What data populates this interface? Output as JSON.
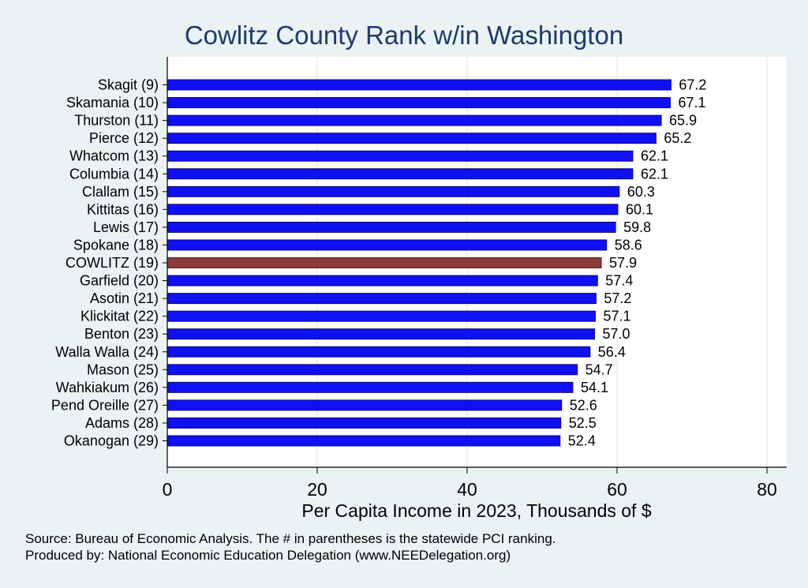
{
  "chart_data": {
    "type": "bar",
    "orientation": "horizontal",
    "title": "Cowlitz County Rank w/in Washington",
    "xlabel": "Per Capita Income in 2023, Thousands of $",
    "xlim": [
      0,
      80
    ],
    "xticks": [
      0,
      20,
      40,
      60,
      80
    ],
    "grid": true,
    "highlight_color": "#8e3b3d",
    "bar_color": "#1010f5",
    "categories": [
      "Skagit  (9)",
      "Skamania (10)",
      "Thurston (11)",
      "Pierce (12)",
      "Whatcom (13)",
      "Columbia (14)",
      "Clallam (15)",
      "Kittitas (16)",
      "Lewis (17)",
      "Spokane (18)",
      "COWLITZ (19)",
      "Garfield (20)",
      "Asotin (21)",
      "Klickitat (22)",
      "Benton (23)",
      "Walla Walla (24)",
      "Mason (25)",
      "Wahkiakum (26)",
      "Pend Oreille (27)",
      "Adams (28)",
      "Okanogan (29)"
    ],
    "values": [
      67.2,
      67.1,
      65.9,
      65.2,
      62.1,
      62.1,
      60.3,
      60.1,
      59.8,
      58.6,
      57.9,
      57.4,
      57.2,
      57.1,
      57.0,
      56.4,
      54.7,
      54.1,
      52.6,
      52.5,
      52.4
    ],
    "value_labels": [
      "67.2",
      "67.1",
      "65.9",
      "65.2",
      "62.1",
      "62.1",
      "60.3",
      "60.1",
      "59.8",
      "58.6",
      "57.9",
      "57.4",
      "57.2",
      "57.1",
      "57.0",
      "56.4",
      "54.7",
      "54.1",
      "52.6",
      "52.5",
      "52.4"
    ],
    "highlight_index": 10
  },
  "notes": {
    "source": "Source: Bureau of Economic Analysis. The # in parentheses is the statewide PCI ranking.",
    "produced_by": "Produced by: National Economic Education Delegation (www.NEEDelegation.org)"
  }
}
